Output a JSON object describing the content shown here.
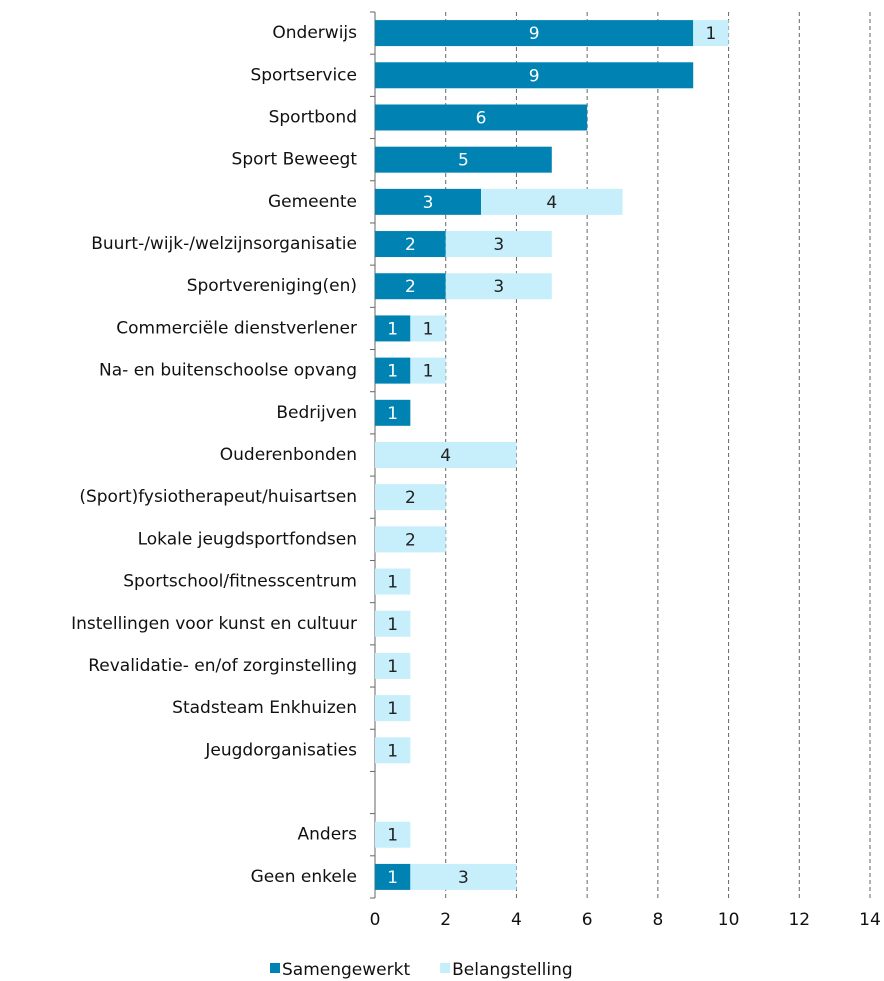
{
  "chart_data": {
    "type": "stacked_bar_horizontal",
    "categories": [
      "Onderwijs",
      "Sportservice",
      "Sportbond",
      "Sport Beweegt",
      "Gemeente",
      "Buurt-/wijk-/welzijnsorganisatie",
      "Sportvereniging(en)",
      "Commerciële dienstverlener",
      "Na- en buitenschoolse opvang",
      "Bedrijven",
      "Ouderenbonden",
      "(Sport)fysiotherapeut/huisartsen",
      "Lokale jeugdsportfondsen",
      "Sportschool/fitnesscentrum",
      "Instellingen voor kunst en cultuur",
      "Revalidatie- en/of zorginstelling",
      "Stadsteam Enkhuizen",
      "Jeugdorganisaties",
      null,
      "Anders",
      "Geen enkele"
    ],
    "series": [
      {
        "name": "Samengewerkt",
        "color": "#0082b2",
        "label_color": "#ffffff",
        "values": [
          9,
          9,
          6,
          5,
          3,
          2,
          2,
          1,
          1,
          1,
          null,
          null,
          null,
          null,
          null,
          null,
          null,
          null,
          null,
          null,
          1
        ]
      },
      {
        "name": "Belangstelling",
        "color": "#c6eefb",
        "label_color": "#222222",
        "values": [
          1,
          null,
          null,
          null,
          4,
          3,
          3,
          1,
          1,
          null,
          4,
          2,
          2,
          1,
          1,
          1,
          1,
          1,
          null,
          1,
          3
        ]
      }
    ],
    "xlim": [
      0,
      14
    ],
    "xticks": [
      0,
      2,
      4,
      6,
      8,
      10,
      12,
      14
    ],
    "grid": true,
    "legend": "bottom"
  }
}
